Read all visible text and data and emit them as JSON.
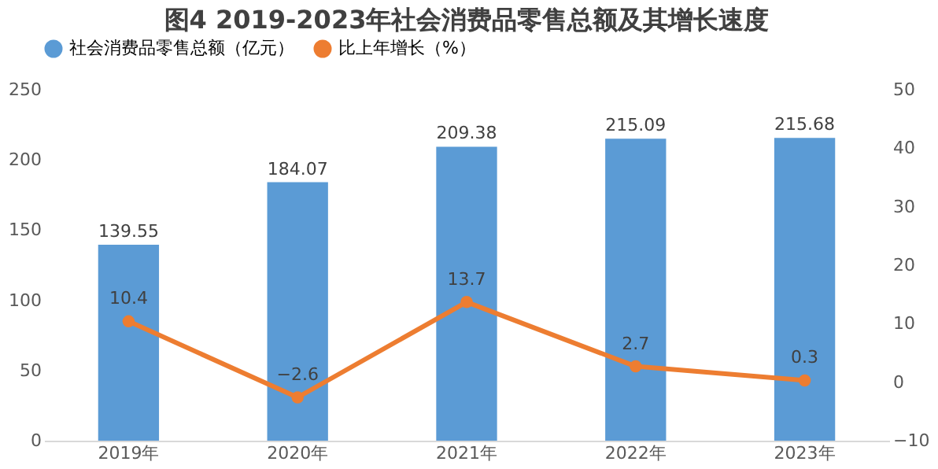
{
  "chart_data": {
    "type": "bar",
    "title": "图4  2019-2023年社会消费品零售总额及其增长速度",
    "categories": [
      "2019年",
      "2020年",
      "2021年",
      "2022年",
      "2023年"
    ],
    "series": [
      {
        "name": "社会消费品零售总额（亿元）",
        "color": "#5b9bd5",
        "values": [
          139.55,
          184.07,
          209.38,
          215.09,
          215.68
        ]
      },
      {
        "name": "比上年增长（%）",
        "type": "line",
        "axis": "y2",
        "color": "#ed7d31",
        "values": [
          10.4,
          -2.6,
          13.7,
          2.7,
          0.3
        ]
      }
    ],
    "ylim": [
      0,
      250
    ],
    "yticks": [
      0,
      50,
      100,
      150,
      200,
      250
    ],
    "y2lim": [
      -10,
      50
    ],
    "y2ticks": [
      -10,
      0,
      10,
      20,
      30,
      40,
      50
    ],
    "data_labels": true,
    "grid": false,
    "legend": "top",
    "marker": "circle",
    "line_style": "solid"
  }
}
